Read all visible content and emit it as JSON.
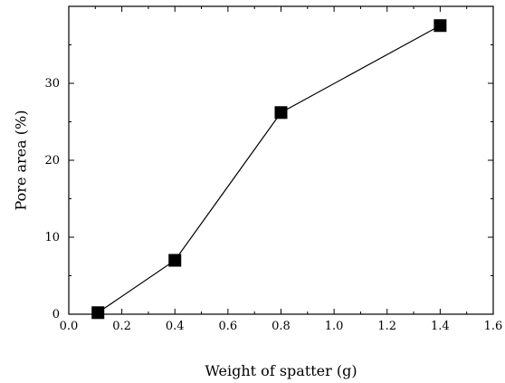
{
  "chart_data": {
    "type": "line",
    "title": "",
    "xlabel": "Weight of spatter (g)",
    "ylabel": "Pore area (%)",
    "xlim": [
      0.0,
      1.6
    ],
    "ylim": [
      0,
      40
    ],
    "x_ticks": [
      0.0,
      0.2,
      0.4,
      0.6,
      0.8,
      1.0,
      1.2,
      1.4,
      1.6
    ],
    "x_tick_labels": [
      "0.0",
      "0.2",
      "0.4",
      "0.6",
      "0.8",
      "1.0",
      "1.2",
      "1.4",
      "1.6"
    ],
    "y_ticks": [
      0,
      10,
      20,
      30
    ],
    "y_tick_labels": [
      "0",
      "10",
      "20",
      "30"
    ],
    "grid": false,
    "legend": "none",
    "series": [
      {
        "marker": "filled-square",
        "color": "#000000",
        "x": [
          0.11,
          0.4,
          0.8,
          1.4
        ],
        "y": [
          0.2,
          7.0,
          26.2,
          37.5
        ]
      }
    ]
  }
}
